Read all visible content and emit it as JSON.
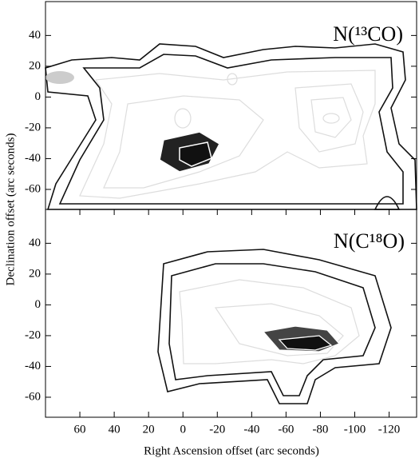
{
  "chart_data": [
    {
      "type": "contour",
      "label": "N(¹³CO)",
      "ylabel": "Declination offset (arc seconds)",
      "ylim": [
        -73,
        62
      ],
      "yticks": [
        40,
        20,
        0,
        -20,
        -40,
        -60
      ]
    },
    {
      "type": "contour",
      "label": "N(C¹⁸O)",
      "xlabel": "Right Ascension offset (arc seconds)",
      "xlim": [
        80,
        -136
      ],
      "xticks": [
        60,
        40,
        20,
        0,
        -20,
        -40,
        -60,
        -80,
        -100,
        -120
      ],
      "ylim": [
        -73,
        62
      ],
      "yticks": [
        40,
        20,
        0,
        -20,
        -40,
        -60
      ]
    }
  ]
}
